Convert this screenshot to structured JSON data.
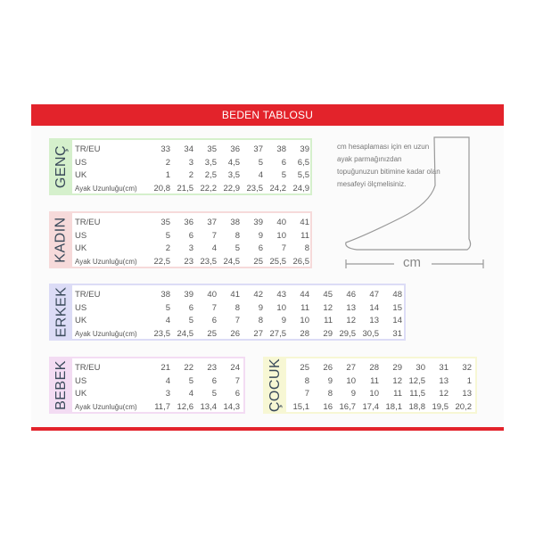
{
  "title": "BEDEN TABLOSU",
  "info_text": "cm hesaplaması için en uzun ayak parmağınızdan topuğunuzun bitimine kadar olan mesafeyi ölçmelisiniz.",
  "foot_unit": "cm",
  "row_headers": [
    "TR/EU",
    "US",
    "UK",
    "Ayak Uzunluğu(cm)"
  ],
  "colors": {
    "accent": "#e3232b",
    "genc": "#d5f0cc",
    "kadin": "#f6dada",
    "erkek": "#dcdcf6",
    "bebek": "#f3dcf3",
    "cocuk": "#f7f7d4"
  },
  "tables": [
    {
      "label": "GENÇ",
      "rows": [
        [
          "33",
          "34",
          "35",
          "36",
          "37",
          "38",
          "39"
        ],
        [
          "2",
          "3",
          "3,5",
          "4,5",
          "5",
          "6",
          "6,5"
        ],
        [
          "1",
          "2",
          "2,5",
          "3,5",
          "4",
          "5",
          "5,5"
        ],
        [
          "20,8",
          "21,5",
          "22,2",
          "22,9",
          "23,5",
          "24,2",
          "24,9"
        ]
      ]
    },
    {
      "label": "KADIN",
      "rows": [
        [
          "35",
          "36",
          "37",
          "38",
          "39",
          "40",
          "41"
        ],
        [
          "5",
          "6",
          "7",
          "8",
          "9",
          "10",
          "11"
        ],
        [
          "2",
          "3",
          "4",
          "5",
          "6",
          "7",
          "8"
        ],
        [
          "22,5",
          "23",
          "23,5",
          "24,5",
          "25",
          "25,5",
          "26,5"
        ]
      ]
    },
    {
      "label": "ERKEK",
      "rows": [
        [
          "38",
          "39",
          "40",
          "41",
          "42",
          "43",
          "44",
          "45",
          "46",
          "47",
          "48"
        ],
        [
          "5",
          "6",
          "7",
          "8",
          "9",
          "10",
          "11",
          "12",
          "13",
          "14",
          "15"
        ],
        [
          "4",
          "5",
          "6",
          "7",
          "8",
          "9",
          "10",
          "11",
          "12",
          "13",
          "14"
        ],
        [
          "23,5",
          "24,5",
          "25",
          "26",
          "27",
          "27,5",
          "28",
          "29",
          "29,5",
          "30,5",
          "31"
        ]
      ]
    },
    {
      "label": "BEBEK",
      "rows": [
        [
          "21",
          "22",
          "23",
          "24"
        ],
        [
          "4",
          "5",
          "6",
          "7"
        ],
        [
          "3",
          "4",
          "5",
          "6"
        ],
        [
          "11,7",
          "12,6",
          "13,4",
          "14,3"
        ]
      ]
    },
    {
      "label": "ÇOCUK",
      "rows": [
        [
          "25",
          "26",
          "27",
          "28",
          "29",
          "30",
          "31",
          "32"
        ],
        [
          "8",
          "9",
          "10",
          "11",
          "12",
          "12,5",
          "13",
          "1"
        ],
        [
          "7",
          "8",
          "9",
          "10",
          "11",
          "11,5",
          "12",
          "13"
        ],
        [
          "15,1",
          "16",
          "16,7",
          "17,4",
          "18,1",
          "18,8",
          "19,5",
          "20,2"
        ]
      ]
    }
  ]
}
